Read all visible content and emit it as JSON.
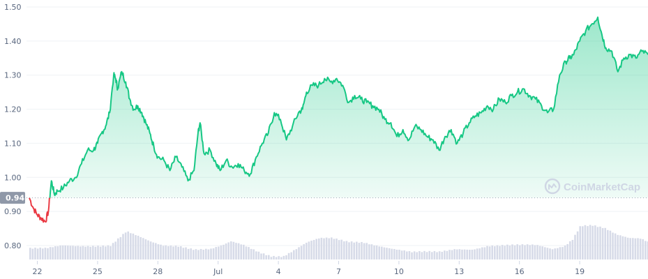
{
  "watermark": {
    "text": "CoinMarketCap"
  },
  "colors": {
    "up": "#16c784",
    "down": "#ea3943",
    "volume": "#d7dbe8",
    "grid": "#eff2f5",
    "axis_text": "#58667e",
    "badge_bg": "#8f98a8"
  },
  "chart_data": {
    "type": "line",
    "baseline": {
      "value": 0.94,
      "label": "0.94"
    },
    "y_ticks": [
      "0.80",
      "0.90",
      "1.00",
      "1.10",
      "1.20",
      "1.30",
      "1.40",
      "1.50"
    ],
    "x_ticks": [
      "22",
      "25",
      "28",
      "Jul",
      "4",
      "7",
      "10",
      "13",
      "16",
      "19"
    ],
    "ylim": [
      0.75,
      1.5
    ],
    "xlim": [
      21.6,
      52.4
    ],
    "x_tick_positions": [
      22,
      25,
      28,
      31,
      34,
      37,
      40,
      43,
      46,
      49
    ],
    "price": {
      "x": [
        21.6,
        21.8,
        22.0,
        22.2,
        22.4,
        22.55,
        22.7,
        22.85,
        23.0,
        23.3,
        23.6,
        23.9,
        24.2,
        24.5,
        24.8,
        25.0,
        25.2,
        25.4,
        25.6,
        25.8,
        25.9,
        26.0,
        26.2,
        26.4,
        26.6,
        26.8,
        27.0,
        27.2,
        27.4,
        27.6,
        27.8,
        28.0,
        28.3,
        28.6,
        28.9,
        29.2,
        29.5,
        29.8,
        30.0,
        30.1,
        30.3,
        30.6,
        30.9,
        31.1,
        31.4,
        31.7,
        32.0,
        32.3,
        32.6,
        32.9,
        33.2,
        33.5,
        33.8,
        34.1,
        34.4,
        34.7,
        35.0,
        35.2,
        35.4,
        35.7,
        36.0,
        36.3,
        36.6,
        36.9,
        37.2,
        37.5,
        37.8,
        38.1,
        38.4,
        38.7,
        39.0,
        39.3,
        39.6,
        39.9,
        40.2,
        40.5,
        40.8,
        41.1,
        41.4,
        41.7,
        42.0,
        42.3,
        42.6,
        42.9,
        43.2,
        43.5,
        43.8,
        44.1,
        44.4,
        44.7,
        45.0,
        45.3,
        45.6,
        45.9,
        46.2,
        46.5,
        46.8,
        47.1,
        47.4,
        47.7,
        48.0,
        48.3,
        48.5,
        48.7,
        49.0,
        49.3,
        49.6,
        49.9,
        50.1,
        50.3,
        50.6,
        50.9,
        51.2,
        51.5,
        51.8,
        52.1,
        52.4
      ],
      "y": [
        0.94,
        0.91,
        0.89,
        0.88,
        0.87,
        0.9,
        0.99,
        0.95,
        0.96,
        0.97,
        0.99,
        1.0,
        1.04,
        1.08,
        1.08,
        1.1,
        1.13,
        1.15,
        1.19,
        1.3,
        1.29,
        1.26,
        1.31,
        1.28,
        1.23,
        1.2,
        1.21,
        1.19,
        1.16,
        1.13,
        1.09,
        1.06,
        1.05,
        1.02,
        1.06,
        1.03,
        0.99,
        1.02,
        1.13,
        1.16,
        1.07,
        1.08,
        1.04,
        1.02,
        1.05,
        1.03,
        1.04,
        1.02,
        1.01,
        1.06,
        1.1,
        1.13,
        1.19,
        1.17,
        1.11,
        1.15,
        1.19,
        1.2,
        1.25,
        1.27,
        1.27,
        1.29,
        1.28,
        1.29,
        1.27,
        1.22,
        1.24,
        1.23,
        1.22,
        1.21,
        1.2,
        1.17,
        1.16,
        1.12,
        1.14,
        1.11,
        1.15,
        1.14,
        1.12,
        1.11,
        1.08,
        1.12,
        1.14,
        1.1,
        1.13,
        1.16,
        1.18,
        1.19,
        1.21,
        1.2,
        1.23,
        1.22,
        1.24,
        1.25,
        1.26,
        1.24,
        1.23,
        1.21,
        1.19,
        1.2,
        1.3,
        1.34,
        1.35,
        1.36,
        1.4,
        1.43,
        1.45,
        1.47,
        1.42,
        1.38,
        1.37,
        1.31,
        1.35,
        1.36,
        1.35,
        1.37,
        1.36
      ]
    },
    "volume": {
      "x": [
        21.6,
        22.4,
        23.2,
        24.0,
        24.8,
        25.6,
        26.0,
        26.4,
        26.8,
        27.2,
        27.6,
        28.2,
        29.0,
        29.8,
        30.6,
        31.2,
        31.6,
        32.2,
        33.0,
        33.6,
        34.2,
        34.8,
        35.4,
        36.0,
        36.6,
        37.4,
        38.2,
        39.0,
        39.8,
        40.6,
        41.2,
        42.0,
        42.8,
        43.6,
        44.4,
        45.2,
        46.0,
        46.8,
        47.6,
        48.2,
        48.6,
        49.0,
        49.6,
        50.2,
        50.8,
        51.4,
        52.0,
        52.4
      ],
      "y": [
        0.79,
        0.79,
        0.8,
        0.8,
        0.8,
        0.8,
        0.82,
        0.84,
        0.83,
        0.82,
        0.81,
        0.8,
        0.8,
        0.79,
        0.79,
        0.8,
        0.81,
        0.8,
        0.78,
        0.77,
        0.77,
        0.79,
        0.81,
        0.82,
        0.82,
        0.81,
        0.81,
        0.8,
        0.79,
        0.78,
        0.78,
        0.78,
        0.79,
        0.79,
        0.8,
        0.8,
        0.8,
        0.8,
        0.79,
        0.8,
        0.82,
        0.86,
        0.86,
        0.85,
        0.83,
        0.82,
        0.82,
        0.81
      ]
    }
  }
}
